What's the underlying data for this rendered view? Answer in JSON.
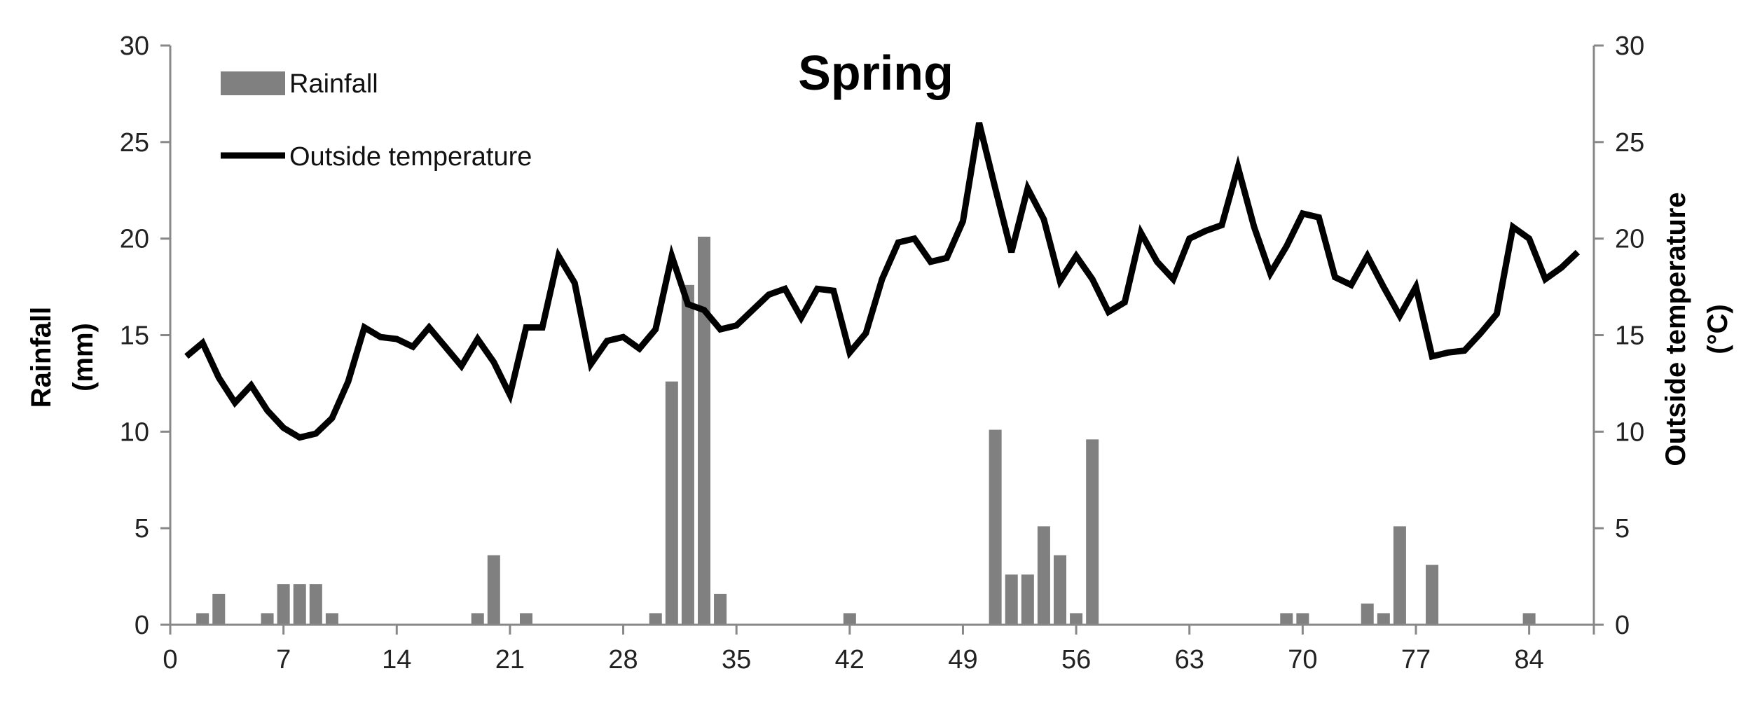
{
  "chart_data": {
    "type": "bar+line",
    "title": "Spring",
    "left_axis": {
      "label_line1": "Rainfall",
      "label_line2": "(mm)",
      "ylim": [
        0,
        30
      ],
      "ticks": [
        0,
        5,
        10,
        15,
        20,
        25,
        30
      ]
    },
    "right_axis": {
      "label_line1": "Outside temperature",
      "label_line2": "(°C)",
      "ylim": [
        0,
        30
      ],
      "ticks": [
        0,
        5,
        10,
        15,
        20,
        25,
        30
      ]
    },
    "x_axis": {
      "xlim": [
        0,
        88
      ],
      "ticks": [
        0,
        7,
        14,
        21,
        28,
        35,
        42,
        49,
        56,
        63,
        70,
        77,
        84
      ]
    },
    "legend": {
      "position": "top-left",
      "rainfall_label": "Rainfall",
      "temperature_label": "Outside temperature"
    },
    "colors": {
      "rainfall": "#808080",
      "temperature": "#000000"
    },
    "rainfall": {
      "name": "Rainfall",
      "x": [
        2,
        3,
        6,
        7,
        8,
        9,
        10,
        19,
        20,
        22,
        30,
        31,
        32,
        33,
        34,
        42,
        51,
        52,
        53,
        54,
        55,
        56,
        57,
        69,
        70,
        74,
        75,
        76,
        78,
        84
      ],
      "values": [
        0.6,
        1.6,
        0.6,
        2.1,
        2.1,
        2.1,
        0.6,
        0.6,
        3.6,
        0.6,
        0.6,
        12.6,
        17.6,
        20.1,
        1.6,
        0.6,
        10.1,
        2.6,
        2.6,
        5.1,
        3.6,
        0.6,
        9.6,
        0.6,
        0.6,
        1.1,
        0.6,
        5.1,
        3.1,
        0.6
      ]
    },
    "temperature": {
      "name": "Outside temperature",
      "x": [
        1,
        2,
        3,
        4,
        5,
        6,
        7,
        8,
        9,
        10,
        11,
        12,
        13,
        14,
        15,
        16,
        17,
        18,
        19,
        20,
        21,
        22,
        23,
        24,
        25,
        26,
        27,
        28,
        29,
        30,
        31,
        32,
        33,
        34,
        35,
        36,
        37,
        38,
        39,
        40,
        41,
        42,
        43,
        44,
        45,
        46,
        47,
        48,
        49,
        50,
        51,
        52,
        53,
        54,
        55,
        56,
        57,
        58,
        59,
        60,
        61,
        62,
        63,
        64,
        65,
        66,
        67,
        68,
        69,
        70,
        71,
        72,
        73,
        74,
        75,
        76,
        77,
        78,
        79,
        80,
        81,
        82,
        83,
        84,
        85,
        86,
        87
      ],
      "values": [
        13.9,
        14.6,
        12.8,
        11.5,
        12.4,
        11.1,
        10.2,
        9.7,
        9.9,
        10.7,
        12.6,
        15.4,
        14.9,
        14.8,
        14.4,
        15.4,
        14.4,
        13.4,
        14.8,
        13.6,
        11.9,
        15.4,
        15.4,
        19.1,
        17.7,
        13.5,
        14.7,
        14.9,
        14.3,
        15.3,
        19.1,
        16.6,
        16.3,
        15.3,
        15.5,
        16.3,
        17.1,
        17.4,
        15.9,
        17.4,
        17.3,
        14.1,
        15.1,
        17.9,
        19.8,
        20.0,
        18.8,
        19.0,
        20.9,
        26.0,
        22.6,
        19.3,
        22.6,
        21.0,
        17.8,
        19.1,
        17.9,
        16.2,
        16.7,
        20.3,
        18.8,
        17.9,
        20.0,
        20.4,
        20.7,
        23.7,
        20.6,
        18.2,
        19.6,
        21.3,
        21.1,
        18.0,
        17.6,
        19.1,
        17.5,
        16.0,
        17.5,
        13.9,
        14.1,
        14.2,
        15.1,
        16.1,
        20.6,
        20.0,
        17.9,
        18.5,
        19.3
      ]
    }
  }
}
